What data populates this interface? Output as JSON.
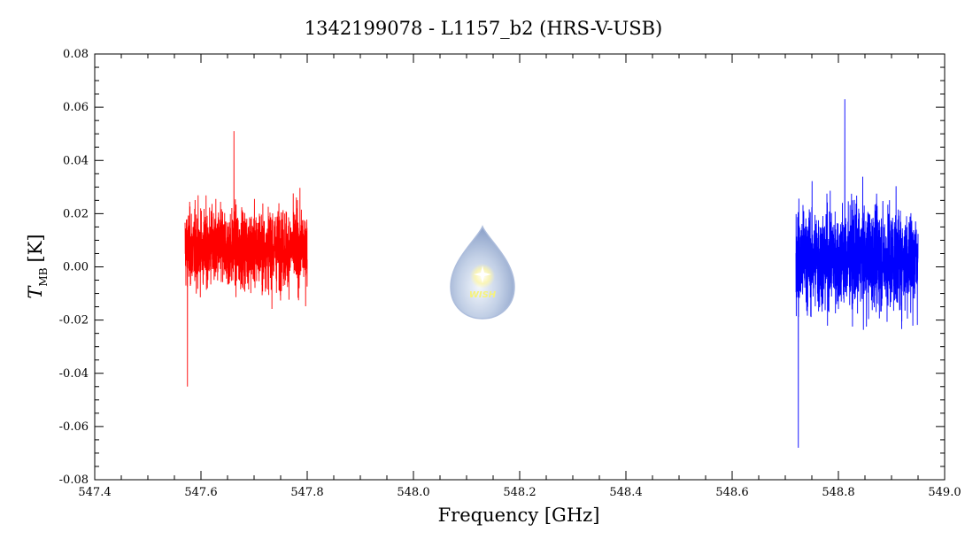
{
  "chart_data": {
    "type": "line",
    "title": "1342199078 - L1157_b2 (HRS-V-USB)",
    "xlabel": "Frequency [GHz]",
    "ylabel_main": "T",
    "ylabel_sub": "MB",
    "ylabel_unit": "[K]",
    "xlim": [
      547.4,
      549.0
    ],
    "ylim": [
      -0.08,
      0.08
    ],
    "x_ticks": [
      "547.4",
      "547.6",
      "547.8",
      "548.0",
      "548.2",
      "548.4",
      "548.6",
      "548.8",
      "549.0"
    ],
    "y_ticks": [
      "-0.08",
      "-0.06",
      "-0.04",
      "-0.02",
      "0.00",
      "0.02",
      "0.04",
      "0.06",
      "0.08"
    ],
    "grid": false,
    "series": [
      {
        "color": "#ff0000",
        "x_range": [
          547.57,
          547.8
        ],
        "baseline": 0.007,
        "noise_rms": 0.012,
        "y_extremes": [
          -0.045,
          0.051
        ]
      },
      {
        "color": "#0000ff",
        "x_range": [
          548.72,
          548.95
        ],
        "baseline": 0.003,
        "noise_rms": 0.016,
        "y_extremes": [
          -0.068,
          0.063
        ]
      }
    ],
    "logo": {
      "text": "WISH",
      "icon": "water-drop-star-icon"
    }
  }
}
